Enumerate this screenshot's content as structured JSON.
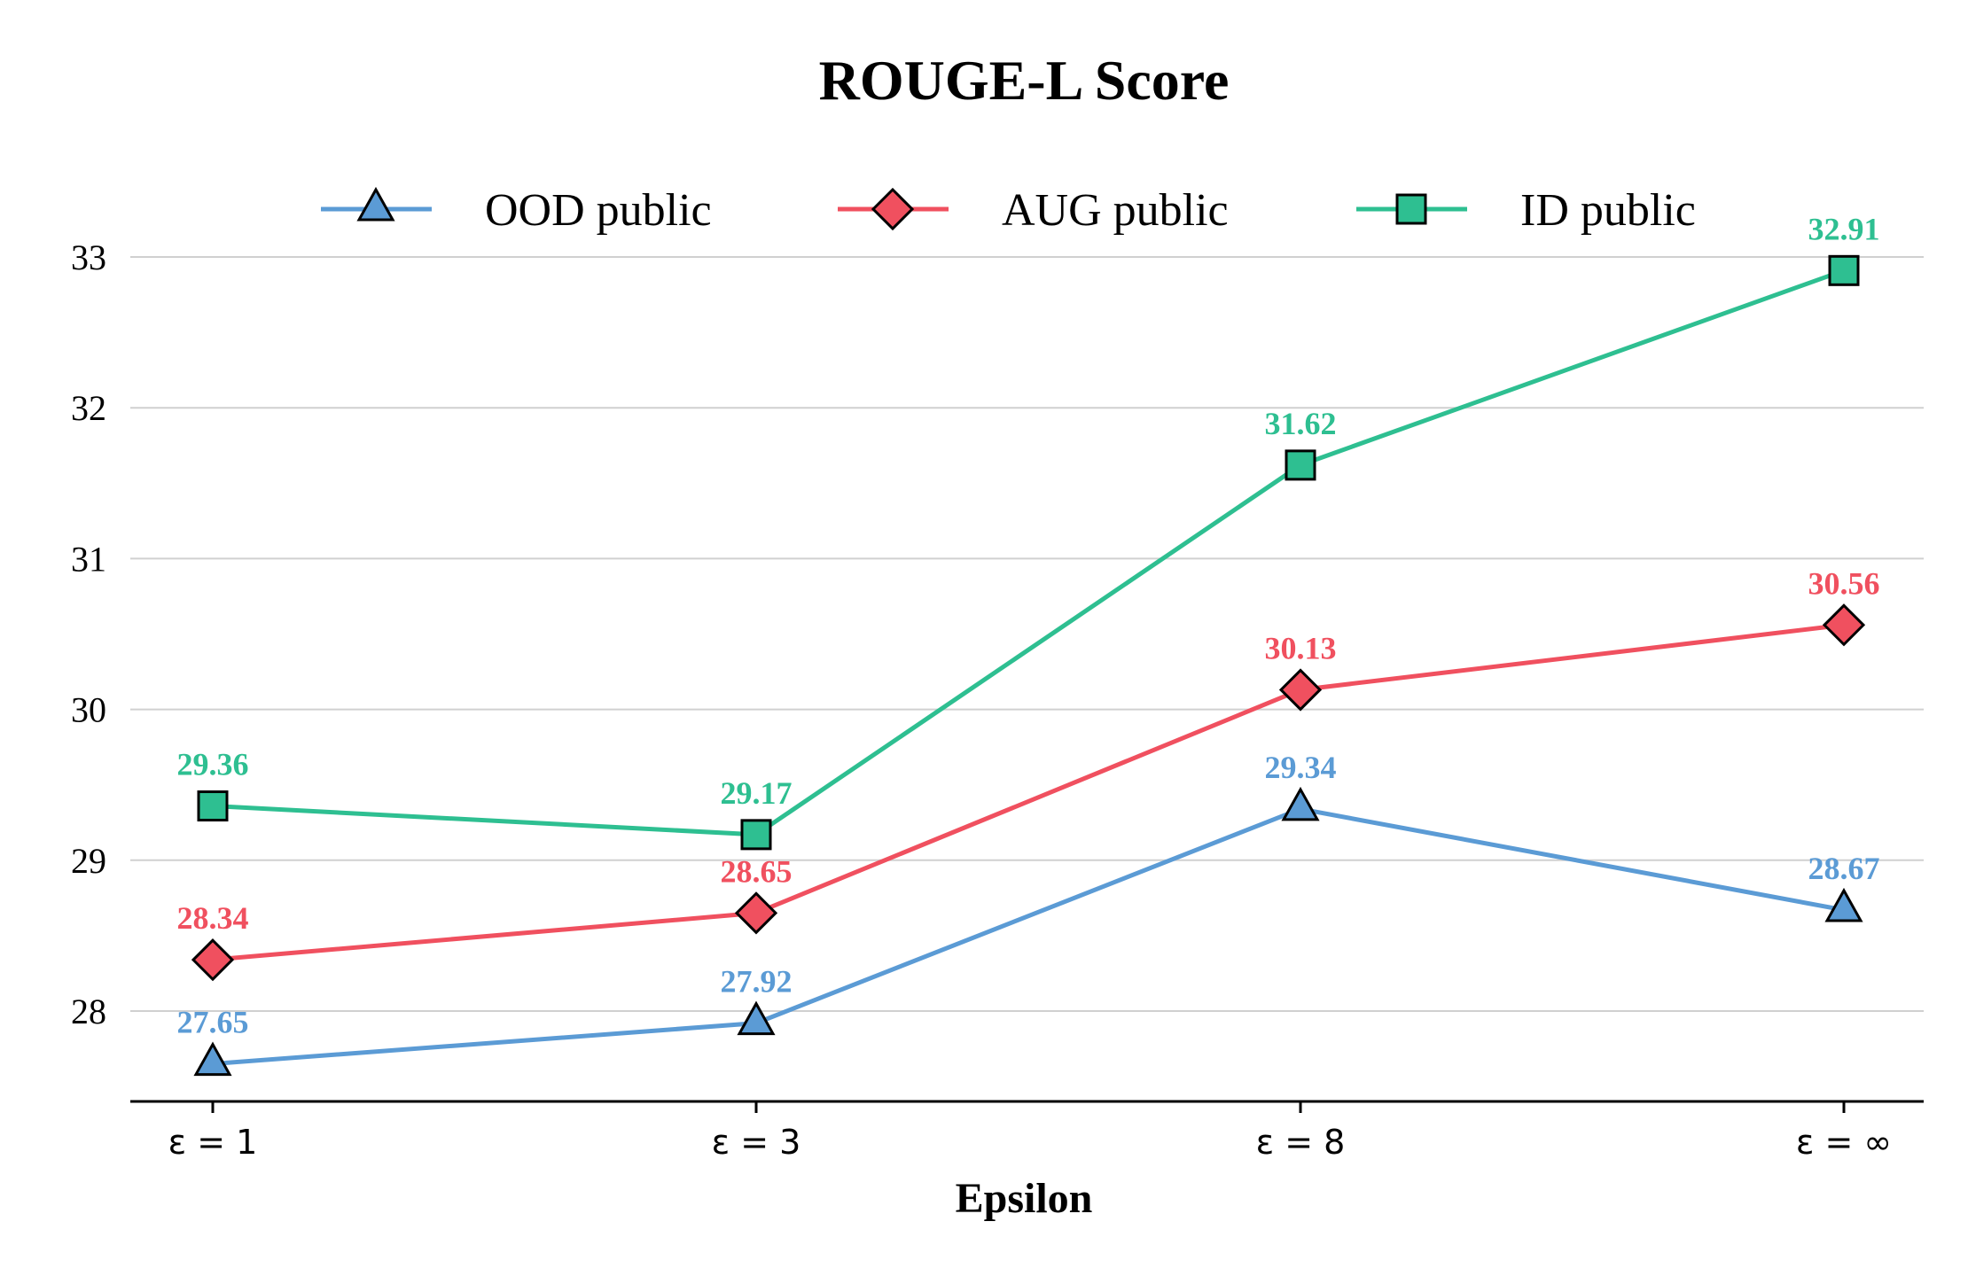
{
  "chart_data": {
    "type": "line",
    "title": "ROUGE-L Score",
    "xlabel": "Epsilon",
    "ylabel": "",
    "categories": [
      "ε = 1",
      "ε = 3",
      "ε = 8",
      "ε = ∞"
    ],
    "ylim": [
      27.42,
      33.1
    ],
    "yticks": [
      28,
      29,
      30,
      31,
      32,
      33
    ],
    "grid": "y",
    "legend_position": "top",
    "series": [
      {
        "name": "OOD public",
        "values": [
          27.65,
          27.92,
          29.34,
          28.67
        ],
        "color": "#5b9bd5",
        "marker": "triangle"
      },
      {
        "name": "AUG public",
        "values": [
          28.34,
          28.65,
          30.13,
          30.56
        ],
        "color": "#f0505f",
        "marker": "diamond"
      },
      {
        "name": "ID public",
        "values": [
          29.36,
          29.17,
          31.62,
          32.91
        ],
        "color": "#2ebf91",
        "marker": "square"
      }
    ]
  }
}
